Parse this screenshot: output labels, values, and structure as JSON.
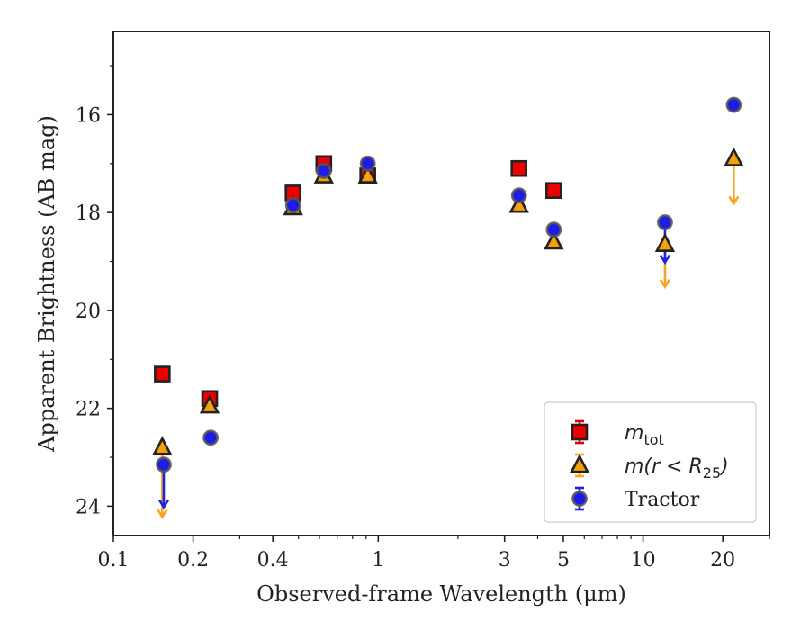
{
  "chart_data": {
    "type": "scatter",
    "xlabel": "Observed-frame Wavelength (μm)",
    "ylabel": "Apparent Brightness (AB mag)",
    "x_scale": "log",
    "xlim": [
      0.1,
      30
    ],
    "ylim": [
      24.6,
      14.3
    ],
    "y_inverted": true,
    "grid": false,
    "legend_position": "lower-right",
    "x_ticks": [
      {
        "value": 0.1,
        "label": "0.1"
      },
      {
        "value": 0.2,
        "label": "0.2"
      },
      {
        "value": 0.4,
        "label": "0.4"
      },
      {
        "value": 1,
        "label": "1"
      },
      {
        "value": 3,
        "label": "3"
      },
      {
        "value": 5,
        "label": "5"
      },
      {
        "value": 10,
        "label": "10"
      },
      {
        "value": 20,
        "label": "20"
      }
    ],
    "y_ticks": [
      {
        "value": 16,
        "label": "16"
      },
      {
        "value": 18,
        "label": "18"
      },
      {
        "value": 20,
        "label": "20"
      },
      {
        "value": 22,
        "label": "22"
      },
      {
        "value": 24,
        "label": "24"
      }
    ],
    "series": [
      {
        "name": "m_tot",
        "legend_label_main": "m",
        "legend_label_sub": "tot",
        "marker": "square",
        "fill": "#ee0000",
        "edge": "#222222",
        "errcolor": "#dd0000",
        "points": [
          {
            "x": 0.153,
            "y": 21.3
          },
          {
            "x": 0.231,
            "y": 21.8
          },
          {
            "x": 0.477,
            "y": 17.6
          },
          {
            "x": 0.623,
            "y": 17.0
          },
          {
            "x": 0.913,
            "y": 17.25
          },
          {
            "x": 3.4,
            "y": 17.1
          },
          {
            "x": 4.6,
            "y": 17.55
          }
        ]
      },
      {
        "name": "m(r < R25)",
        "legend_label_main": "m(r < R",
        "legend_label_sub": "25",
        "legend_label_tail": ")",
        "marker": "triangle",
        "fill": "#f5a000",
        "edge": "#222222",
        "errcolor": "#f5a623",
        "points": [
          {
            "x": 0.153,
            "y": 22.8,
            "upper_limit": true,
            "limit_to": 24.2
          },
          {
            "x": 0.231,
            "y": 21.95
          },
          {
            "x": 0.477,
            "y": 17.9
          },
          {
            "x": 0.623,
            "y": 17.25
          },
          {
            "x": 0.913,
            "y": 17.25
          },
          {
            "x": 3.4,
            "y": 17.85
          },
          {
            "x": 4.6,
            "y": 18.6
          },
          {
            "x": 12.1,
            "y": 18.65,
            "upper_limit": true,
            "limit_to": 19.5
          },
          {
            "x": 22.0,
            "y": 16.9,
            "upper_limit": true,
            "limit_to": 17.8
          }
        ]
      },
      {
        "name": "Tractor",
        "legend_label_main": "Tractor",
        "marker": "circle",
        "fill": "#1a1aee",
        "edge": "#555555",
        "errcolor": "#2222dd",
        "points": [
          {
            "x": 0.155,
            "y": 23.15,
            "upper_limit": true,
            "limit_to": 24.0
          },
          {
            "x": 0.233,
            "y": 22.6
          },
          {
            "x": 0.477,
            "y": 17.85
          },
          {
            "x": 0.623,
            "y": 17.15
          },
          {
            "x": 0.913,
            "y": 17.0
          },
          {
            "x": 3.4,
            "y": 17.65
          },
          {
            "x": 4.6,
            "y": 18.35
          },
          {
            "x": 12.1,
            "y": 18.2,
            "upper_limit": true,
            "limit_to": 19.0
          },
          {
            "x": 22.0,
            "y": 15.8
          }
        ]
      }
    ]
  }
}
